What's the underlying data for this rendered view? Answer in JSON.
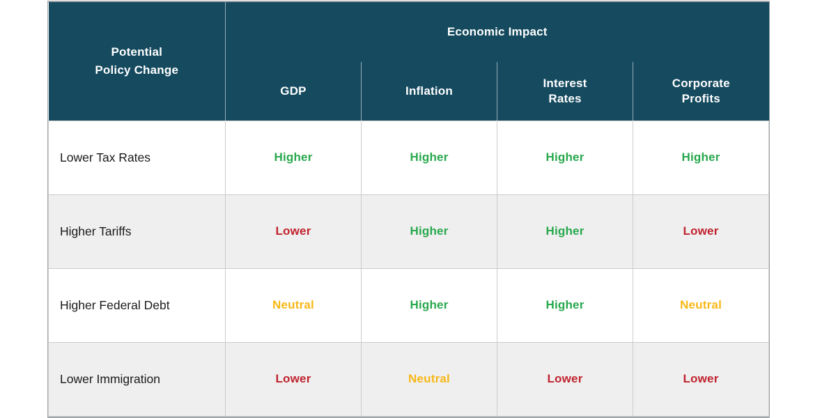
{
  "chart_data": {
    "type": "table",
    "corner_header": "Potential Policy Change",
    "group_header": "Economic Impact",
    "columns": [
      "GDP",
      "Inflation",
      "Interest Rates",
      "Corporate Profits"
    ],
    "rows": [
      {
        "label": "Lower Tax Rates",
        "values": [
          "Higher",
          "Higher",
          "Higher",
          "Higher"
        ]
      },
      {
        "label": "Higher Tariffs",
        "values": [
          "Lower",
          "Higher",
          "Higher",
          "Lower"
        ]
      },
      {
        "label": "Higher Federal Debt",
        "values": [
          "Neutral",
          "Higher",
          "Higher",
          "Neutral"
        ]
      },
      {
        "label": "Lower Immigration",
        "values": [
          "Lower",
          "Neutral",
          "Lower",
          "Lower"
        ]
      }
    ],
    "value_colors": {
      "Higher": "#28A84C",
      "Lower": "#C0222D",
      "Neutral": "#F8B717"
    }
  },
  "display": {
    "corner_header": "Potential\nPolicy Change",
    "columns": [
      "GDP",
      "Inflation",
      "Interest\nRates",
      "Corporate\nProfits"
    ]
  },
  "colors": {
    "header_bg": "#154A5F",
    "header_text": "#FFFFFF",
    "row_stripe": "#EFEFEF",
    "cell_border": "#CCCCCC",
    "outer_border": "#A2A7AA",
    "label_text": "#1A1A1A"
  }
}
